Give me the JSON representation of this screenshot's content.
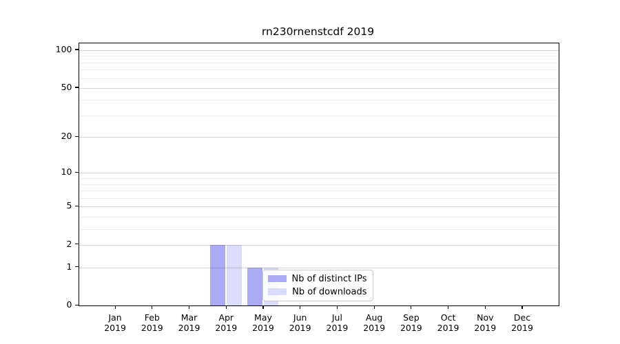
{
  "chart_data": {
    "type": "bar",
    "title": "rn230rnenstcdf 2019",
    "categories": [
      "Jan 2019",
      "Feb 2019",
      "Mar 2019",
      "Apr 2019",
      "May 2019",
      "Jun 2019",
      "Jul 2019",
      "Aug 2019",
      "Sep 2019",
      "Oct 2019",
      "Nov 2019",
      "Dec 2019"
    ],
    "x_tick_month_labels": [
      "Jan",
      "Feb",
      "Mar",
      "Apr",
      "May",
      "Jun",
      "Jul",
      "Aug",
      "Sep",
      "Oct",
      "Nov",
      "Dec"
    ],
    "x_tick_year_label": "2019",
    "series": [
      {
        "name": "Nb of distinct IPs",
        "color": "#aaaaf5",
        "values": [
          0,
          0,
          0,
          2,
          1,
          0,
          0,
          0,
          0,
          0,
          0,
          0
        ]
      },
      {
        "name": "Nb of downloads",
        "color": "#dbdbfa",
        "values": [
          0,
          0,
          0,
          2,
          1,
          0,
          0,
          0,
          0,
          0,
          0,
          0
        ]
      }
    ],
    "y_scale": "log1p",
    "ylim": [
      0,
      114
    ],
    "y_major_ticks": [
      0,
      1,
      2,
      5,
      10,
      20,
      50,
      100
    ],
    "y_minor_gridlines": [
      3,
      4,
      6,
      7,
      8,
      9,
      30,
      40,
      60,
      70,
      80,
      90
    ],
    "grid": "horizontal, drawn over bars",
    "legend_position": "inside lower-center",
    "xlabel": "",
    "ylabel": ""
  },
  "colors": {
    "axis": "#000000",
    "major_grid": "rgba(0,0,0,0.17)",
    "minor_grid": "rgba(0,0,0,0.065)",
    "background": "#ffffff",
    "legend_border": "#cccccc"
  }
}
